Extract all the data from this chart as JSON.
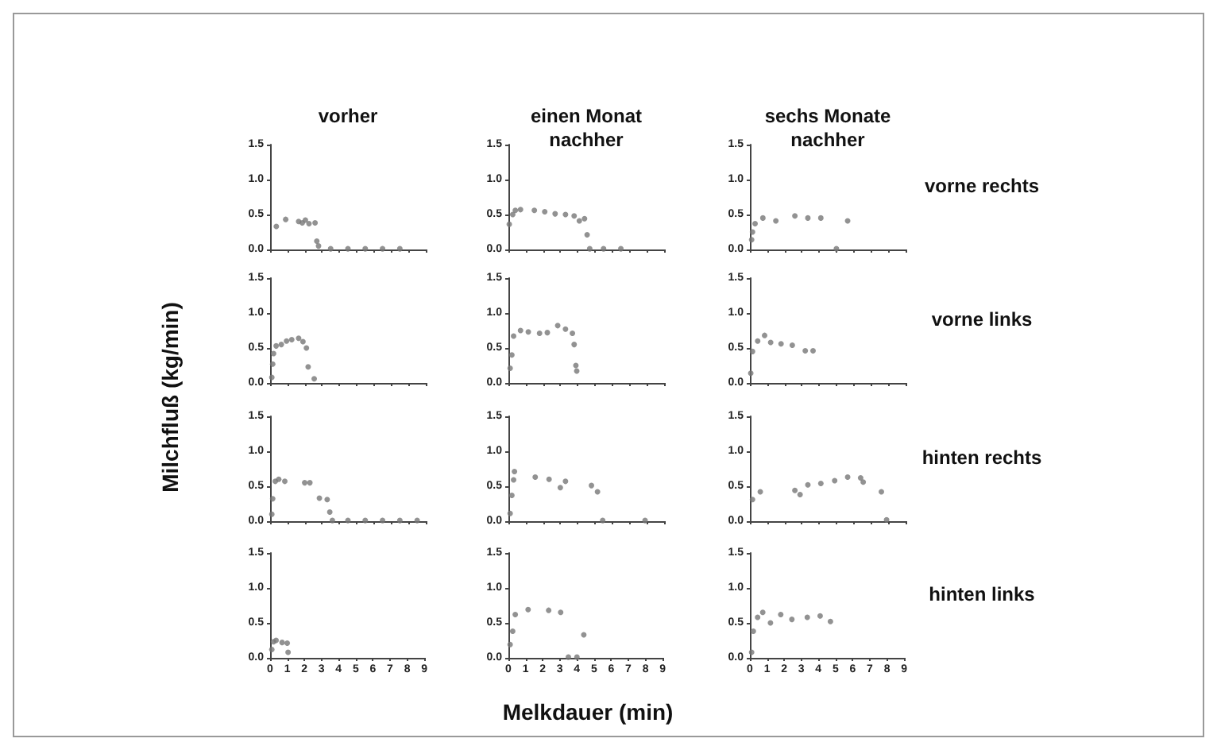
{
  "chart_data": [
    {
      "type": "scatter",
      "title": "vorher",
      "ylabel": "Milchfluß (kg/min)",
      "xlim": [
        0,
        9
      ],
      "ylim": [
        0,
        1.5
      ],
      "xticks": [
        0,
        1,
        2,
        3,
        4,
        5,
        6,
        7,
        8,
        9
      ],
      "yticks": [
        {
          "value": 0,
          "label": "0.0"
        },
        {
          "value": 0.5,
          "label": "0.5"
        },
        {
          "value": 1,
          "label": "1.0"
        },
        {
          "value": 1.5,
          "label": "1.5"
        }
      ],
      "tick_labels": "y",
      "marker": "circle",
      "series": [
        {
          "color": "#777777",
          "x": [
            0.36,
            0.9,
            1.65,
            1.86,
            2.04,
            2.25,
            2.6,
            2.7,
            2.8,
            3.5,
            4.5,
            5.5,
            6.5,
            7.5
          ],
          "values": [
            0.33,
            0.43,
            0.4,
            0.38,
            0.42,
            0.37,
            0.38,
            0.12,
            0.05,
            0.01,
            0.01,
            0.01,
            0.01,
            0.01
          ]
        }
      ]
    },
    {
      "type": "scatter",
      "title": "einen Monat nachher",
      "xlim": [
        0,
        9
      ],
      "ylim": [
        0,
        1.5
      ],
      "xticks": [
        0,
        1,
        2,
        3,
        4,
        5,
        6,
        7,
        8,
        9
      ],
      "yticks": [
        {
          "value": 0,
          "label": "0.0"
        },
        {
          "value": 0.5,
          "label": "0.5"
        },
        {
          "value": 1,
          "label": "1.0"
        },
        {
          "value": 1.5,
          "label": "1.5"
        }
      ],
      "tick_labels": "y",
      "marker": "circle",
      "series": [
        {
          "color": "#777777",
          "x": [
            0.05,
            0.25,
            0.4,
            0.7,
            1.5,
            2.1,
            2.7,
            3.3,
            3.8,
            4.1,
            4.4,
            4.55,
            4.7,
            5.5,
            6.5
          ],
          "values": [
            0.36,
            0.5,
            0.56,
            0.57,
            0.56,
            0.54,
            0.51,
            0.5,
            0.48,
            0.41,
            0.44,
            0.21,
            0.01,
            0.01,
            0.01
          ]
        }
      ]
    },
    {
      "type": "scatter",
      "title": "sechs Monate nachher",
      "y2label": "vorne rechts",
      "xlim": [
        0,
        9
      ],
      "ylim": [
        0,
        1.5
      ],
      "xticks": [
        0,
        1,
        2,
        3,
        4,
        5,
        6,
        7,
        8,
        9
      ],
      "yticks": [
        {
          "value": 0,
          "label": "0.0"
        },
        {
          "value": 0.5,
          "label": "0.5"
        },
        {
          "value": 1,
          "label": "1.0"
        },
        {
          "value": 1.5,
          "label": "1.5"
        }
      ],
      "tick_labels": "y",
      "marker": "circle",
      "series": [
        {
          "color": "#777777",
          "x": [
            0.1,
            0.15,
            0.3,
            0.75,
            1.5,
            2.6,
            3.35,
            4.1,
            5.0,
            5.65
          ],
          "values": [
            0.14,
            0.25,
            0.37,
            0.45,
            0.41,
            0.48,
            0.45,
            0.45,
            0.01,
            0.41
          ]
        }
      ]
    },
    {
      "type": "scatter",
      "xlim": [
        0,
        9
      ],
      "ylim": [
        0,
        1.5
      ],
      "xticks": [
        0,
        1,
        2,
        3,
        4,
        5,
        6,
        7,
        8,
        9
      ],
      "yticks": [
        {
          "value": 0,
          "label": "0.0"
        },
        {
          "value": 0.5,
          "label": "0.5"
        },
        {
          "value": 1,
          "label": "1.0"
        },
        {
          "value": 1.5,
          "label": "1.5"
        }
      ],
      "tick_labels": "y",
      "marker": "circle",
      "series": [
        {
          "color": "#777777",
          "x": [
            0.1,
            0.15,
            0.2,
            0.35,
            0.65,
            0.95,
            1.25,
            1.65,
            1.9,
            2.1,
            2.2,
            2.55
          ],
          "values": [
            0.08,
            0.27,
            0.42,
            0.53,
            0.55,
            0.6,
            0.62,
            0.64,
            0.59,
            0.5,
            0.23,
            0.06
          ]
        }
      ]
    },
    {
      "type": "scatter",
      "xlim": [
        0,
        9
      ],
      "ylim": [
        0,
        1.5
      ],
      "xticks": [
        0,
        1,
        2,
        3,
        4,
        5,
        6,
        7,
        8,
        9
      ],
      "yticks": [
        {
          "value": 0,
          "label": "0.0"
        },
        {
          "value": 0.5,
          "label": "0.5"
        },
        {
          "value": 1,
          "label": "1.0"
        },
        {
          "value": 1.5,
          "label": "1.5"
        }
      ],
      "tick_labels": "y",
      "marker": "circle",
      "series": [
        {
          "color": "#777777",
          "x": [
            0.1,
            0.2,
            0.3,
            0.7,
            1.15,
            1.8,
            2.25,
            2.85,
            3.3,
            3.7,
            3.8,
            3.9,
            3.95
          ],
          "values": [
            0.21,
            0.4,
            0.67,
            0.75,
            0.73,
            0.71,
            0.72,
            0.82,
            0.77,
            0.71,
            0.55,
            0.25,
            0.17
          ]
        }
      ]
    },
    {
      "type": "scatter",
      "y2label": "vorne links",
      "xlim": [
        0,
        9
      ],
      "ylim": [
        0,
        1.5
      ],
      "xticks": [
        0,
        1,
        2,
        3,
        4,
        5,
        6,
        7,
        8,
        9
      ],
      "yticks": [
        {
          "value": 0,
          "label": "0.0"
        },
        {
          "value": 0.5,
          "label": "0.5"
        },
        {
          "value": 1,
          "label": "1.0"
        },
        {
          "value": 1.5,
          "label": "1.5"
        }
      ],
      "tick_labels": "y",
      "marker": "circle",
      "series": [
        {
          "color": "#777777",
          "x": [
            0.05,
            0.15,
            0.45,
            0.85,
            1.2,
            1.8,
            2.45,
            3.2,
            3.65
          ],
          "values": [
            0.14,
            0.45,
            0.6,
            0.68,
            0.58,
            0.56,
            0.54,
            0.46,
            0.46
          ]
        }
      ]
    },
    {
      "type": "scatter",
      "xlim": [
        0,
        9
      ],
      "ylim": [
        0,
        1.5
      ],
      "xticks": [
        0,
        1,
        2,
        3,
        4,
        5,
        6,
        7,
        8,
        9
      ],
      "yticks": [
        {
          "value": 0,
          "label": "0.0"
        },
        {
          "value": 0.5,
          "label": "0.5"
        },
        {
          "value": 1,
          "label": "1.0"
        },
        {
          "value": 1.5,
          "label": "1.5"
        }
      ],
      "tick_labels": "y",
      "marker": "circle",
      "series": [
        {
          "color": "#777777",
          "x": [
            0.1,
            0.15,
            0.3,
            0.5,
            0.85,
            2.0,
            2.3,
            2.85,
            3.3,
            3.45,
            3.6,
            4.5,
            5.5,
            6.5,
            7.5,
            8.5
          ],
          "values": [
            0.1,
            0.32,
            0.57,
            0.6,
            0.57,
            0.55,
            0.55,
            0.33,
            0.31,
            0.13,
            0.01,
            0.01,
            0.01,
            0.01,
            0.01,
            0.01
          ]
        }
      ]
    },
    {
      "type": "scatter",
      "xlim": [
        0,
        9
      ],
      "ylim": [
        0,
        1.5
      ],
      "xticks": [
        0,
        1,
        2,
        3,
        4,
        5,
        6,
        7,
        8,
        9
      ],
      "yticks": [
        {
          "value": 0,
          "label": "0.0"
        },
        {
          "value": 0.5,
          "label": "0.5"
        },
        {
          "value": 1,
          "label": "1.0"
        },
        {
          "value": 1.5,
          "label": "1.5"
        }
      ],
      "tick_labels": "y",
      "marker": "circle",
      "series": [
        {
          "color": "#777777",
          "x": [
            0.1,
            0.2,
            0.3,
            0.35,
            1.55,
            2.35,
            3.0,
            3.3,
            4.8,
            5.15,
            5.45,
            7.9
          ],
          "values": [
            0.11,
            0.37,
            0.59,
            0.71,
            0.63,
            0.6,
            0.48,
            0.57,
            0.51,
            0.42,
            0.01,
            0.01
          ]
        }
      ]
    },
    {
      "type": "scatter",
      "y2label": "hinten rechts",
      "xlim": [
        0,
        9
      ],
      "ylim": [
        0,
        1.5
      ],
      "xticks": [
        0,
        1,
        2,
        3,
        4,
        5,
        6,
        7,
        8,
        9
      ],
      "yticks": [
        {
          "value": 0,
          "label": "0.0"
        },
        {
          "value": 0.5,
          "label": "0.5"
        },
        {
          "value": 1,
          "label": "1.0"
        },
        {
          "value": 1.5,
          "label": "1.5"
        }
      ],
      "tick_labels": "y",
      "marker": "circle",
      "series": [
        {
          "color": "#777777",
          "x": [
            0.15,
            0.6,
            2.6,
            2.9,
            3.35,
            4.1,
            4.9,
            5.65,
            6.4,
            6.55,
            7.6,
            7.9
          ],
          "values": [
            0.31,
            0.42,
            0.44,
            0.38,
            0.52,
            0.54,
            0.58,
            0.63,
            0.62,
            0.56,
            0.42,
            0.02
          ]
        }
      ]
    },
    {
      "type": "scatter",
      "xlim": [
        0,
        9
      ],
      "ylim": [
        0,
        1.5
      ],
      "xticks": [
        0,
        1,
        2,
        3,
        4,
        5,
        6,
        7,
        8,
        9
      ],
      "yticks": [
        {
          "value": 0,
          "label": "0.0"
        },
        {
          "value": 0.5,
          "label": "0.5"
        },
        {
          "value": 1,
          "label": "1.0"
        },
        {
          "value": 1.5,
          "label": "1.5"
        }
      ],
      "marker": "circle",
      "series": [
        {
          "color": "#777777",
          "x": [
            0.1,
            0.2,
            0.35,
            0.7,
            1.0,
            1.05
          ],
          "values": [
            0.12,
            0.23,
            0.25,
            0.22,
            0.21,
            0.08
          ]
        }
      ]
    },
    {
      "type": "scatter",
      "xlabel": "Melkdauer (min)",
      "xlim": [
        0,
        9
      ],
      "ylim": [
        0,
        1.5
      ],
      "xticks": [
        0,
        1,
        2,
        3,
        4,
        5,
        6,
        7,
        8,
        9
      ],
      "yticks": [
        {
          "value": 0,
          "label": "0.0"
        },
        {
          "value": 0.5,
          "label": "0.5"
        },
        {
          "value": 1,
          "label": "1.0"
        },
        {
          "value": 1.5,
          "label": "1.5"
        }
      ],
      "marker": "circle",
      "series": [
        {
          "color": "#777777",
          "x": [
            0.1,
            0.25,
            0.4,
            1.15,
            2.35,
            3.05,
            4.4,
            3.5,
            4.0
          ],
          "values": [
            0.19,
            0.38,
            0.62,
            0.69,
            0.68,
            0.65,
            0.33,
            0.01,
            0.01
          ]
        }
      ]
    },
    {
      "type": "scatter",
      "y2label": "hinten links",
      "xlim": [
        0,
        9
      ],
      "ylim": [
        0,
        1.5
      ],
      "xticks": [
        0,
        1,
        2,
        3,
        4,
        5,
        6,
        7,
        8,
        9
      ],
      "yticks": [
        {
          "value": 0,
          "label": "0.0"
        },
        {
          "value": 0.5,
          "label": "0.5"
        },
        {
          "value": 1,
          "label": "1.0"
        },
        {
          "value": 1.5,
          "label": "1.5"
        }
      ],
      "marker": "circle",
      "series": [
        {
          "color": "#777777",
          "x": [
            0.1,
            0.2,
            0.45,
            0.75,
            1.2,
            1.8,
            2.45,
            3.35,
            4.1,
            4.7
          ],
          "values": [
            0.08,
            0.38,
            0.58,
            0.65,
            0.5,
            0.62,
            0.55,
            0.58,
            0.6,
            0.52
          ]
        }
      ]
    }
  ]
}
